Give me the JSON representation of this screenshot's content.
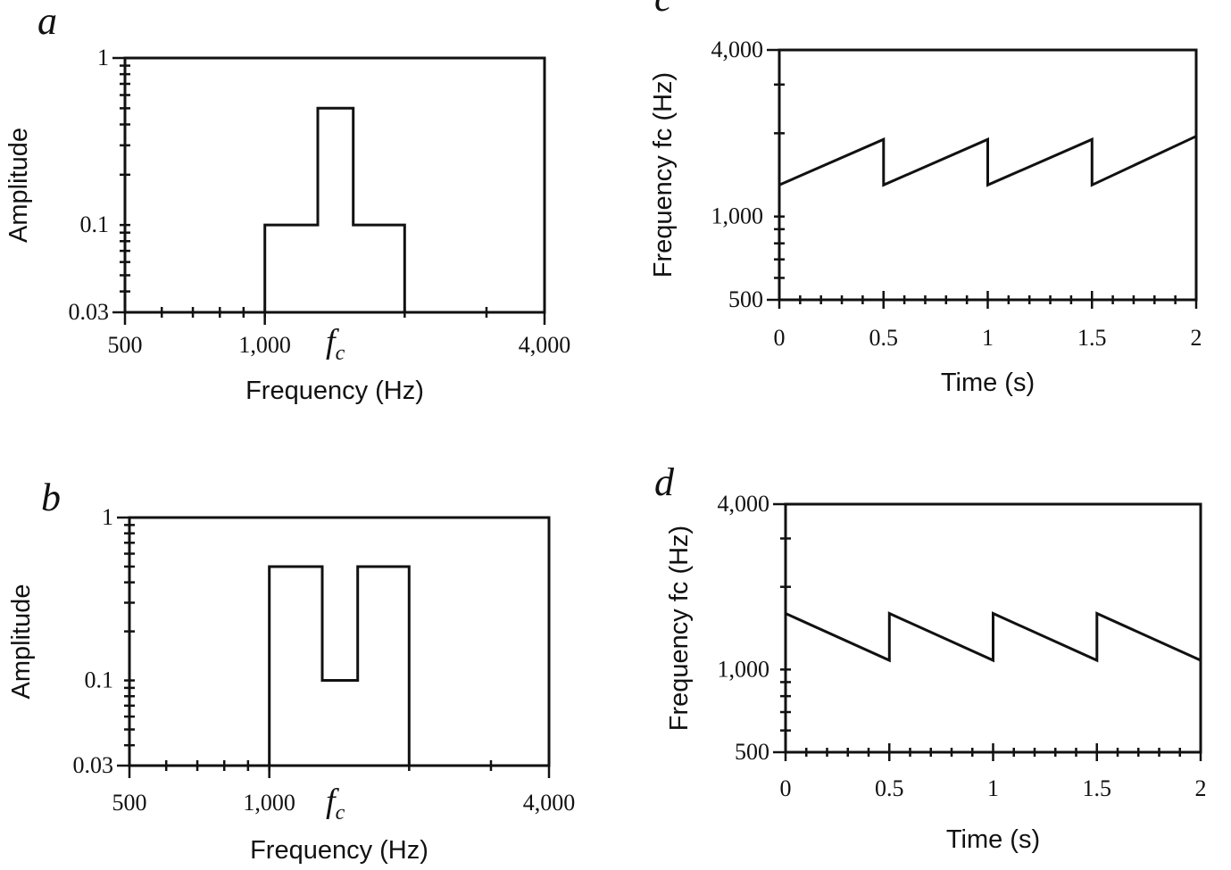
{
  "panels": {
    "a": {
      "letter": "a"
    },
    "b": {
      "letter": "b"
    },
    "c": {
      "letter": "c"
    },
    "d": {
      "letter": "d"
    }
  },
  "fc_label": "f",
  "fc_sub": "c",
  "chart_data": [
    {
      "id": "a",
      "type": "line",
      "scale": "log-log",
      "xlabel": "Frequency (Hz)",
      "ylabel": "Amplitude",
      "xlim": [
        500,
        4000
      ],
      "ylim": [
        0.03,
        1
      ],
      "xticklabels": [
        "500",
        "1,000",
        "4,000"
      ],
      "yticklabels": [
        "1",
        "0.1",
        "0.03"
      ],
      "x": [
        1000,
        1000,
        1300,
        1300,
        1550,
        1550,
        2000,
        2000
      ],
      "y": [
        0.03,
        0.1,
        0.1,
        0.5,
        0.5,
        0.1,
        0.1,
        0.03
      ]
    },
    {
      "id": "b",
      "type": "line",
      "scale": "log-log",
      "xlabel": "Frequency (Hz)",
      "ylabel": "Amplitude",
      "xlim": [
        500,
        4000
      ],
      "ylim": [
        0.03,
        1
      ],
      "xticklabels": [
        "500",
        "1,000",
        "4,000"
      ],
      "yticklabels": [
        "1",
        "0.1",
        "0.03"
      ],
      "x": [
        1000,
        1000,
        1300,
        1300,
        1550,
        1550,
        2000,
        2000
      ],
      "y": [
        0.03,
        0.5,
        0.5,
        0.1,
        0.1,
        0.5,
        0.5,
        0.03
      ]
    },
    {
      "id": "c",
      "type": "line",
      "scale": "linear-x log-y",
      "xlabel": "Time (s)",
      "ylabel": "Frequency fc (Hz)",
      "xlim": [
        0,
        2
      ],
      "ylim": [
        500,
        4000
      ],
      "xticklabels": [
        "0",
        "0.5",
        "1",
        "1.5",
        "2"
      ],
      "yticklabels": [
        "4,000",
        "1,000",
        "500"
      ],
      "x": [
        0,
        0.5,
        0.5,
        1,
        1,
        1.5,
        1.5,
        2
      ],
      "y": [
        1300,
        1900,
        1300,
        1900,
        1300,
        1900,
        1300,
        1950
      ]
    },
    {
      "id": "d",
      "type": "line",
      "scale": "linear-x log-y",
      "xlabel": "Time (s)",
      "ylabel": "Frequency fc (Hz)",
      "xlim": [
        0,
        2
      ],
      "ylim": [
        500,
        4000
      ],
      "xticklabels": [
        "0",
        "0.5",
        "1",
        "1.5",
        "2"
      ],
      "yticklabels": [
        "4,000",
        "1,000",
        "500"
      ],
      "x": [
        0,
        0.5,
        0.5,
        1,
        1,
        1.5,
        1.5,
        2
      ],
      "y": [
        1600,
        1080,
        1600,
        1080,
        1600,
        1080,
        1600,
        1080
      ]
    }
  ]
}
